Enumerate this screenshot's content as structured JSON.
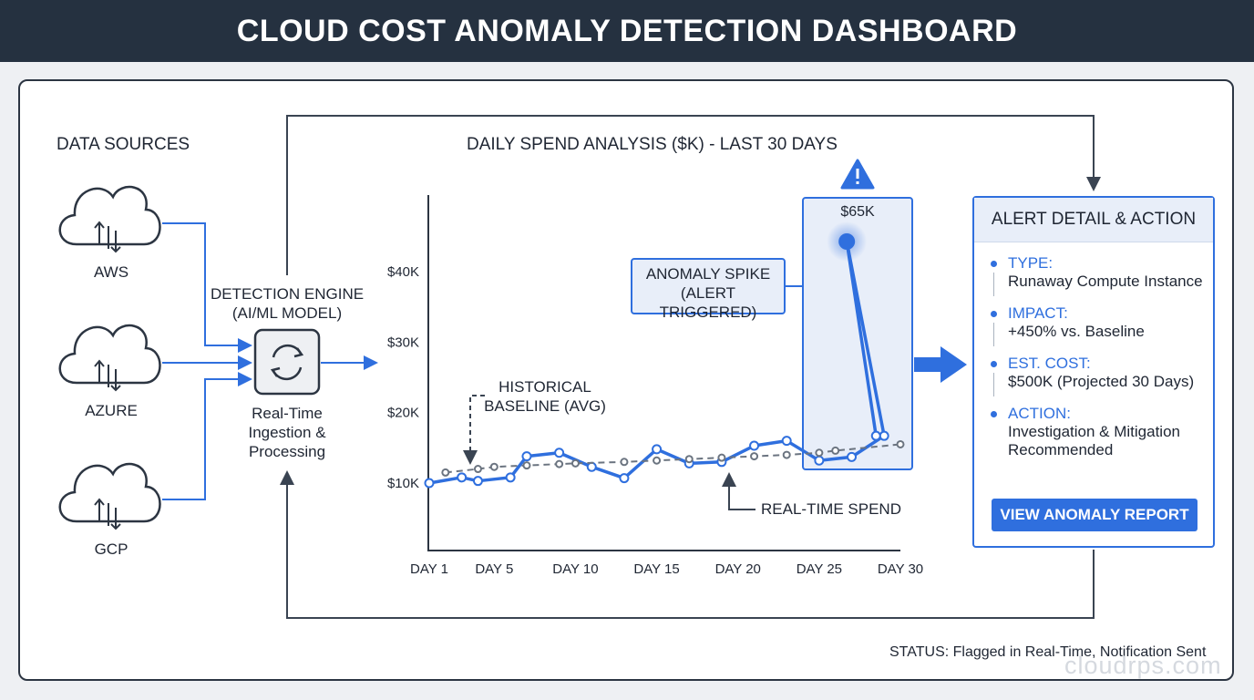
{
  "header": {
    "title": "CLOUD COST ANOMALY DETECTION DASHBOARD"
  },
  "sources": {
    "heading": "DATA SOURCES",
    "items": [
      {
        "label": "AWS",
        "icon": "cloud-sync-icon"
      },
      {
        "label": "AZURE",
        "icon": "cloud-sync-icon"
      },
      {
        "label": "GCP",
        "icon": "cloud-sync-icon"
      }
    ]
  },
  "engine": {
    "title_line1": "DETECTION ENGINE",
    "title_line2": "(AI/ML MODEL)",
    "icon": "refresh-icon",
    "desc_line1": "Real-Time",
    "desc_line2": "Ingestion &",
    "desc_line3": "Processing"
  },
  "callouts": {
    "anomaly_line1": "ANOMALY SPIKE",
    "anomaly_line2": "(ALERT TRIGGERED)",
    "baseline_line1": "HISTORICAL",
    "baseline_line2": "BASELINE (AVG)",
    "realtime": "REAL-TIME SPEND",
    "peak_value": "$65K",
    "warning_icon": "warning-icon"
  },
  "chart_data": {
    "type": "line",
    "title": "DAILY SPEND ANALYSIS ($K) - LAST 30 DAYS",
    "x": [
      1,
      2,
      3,
      4,
      5,
      6,
      7,
      8,
      9,
      10,
      11,
      12,
      13,
      14,
      15,
      16,
      17,
      18,
      19,
      20,
      21,
      22,
      23,
      24,
      25,
      26,
      27,
      28,
      29,
      30
    ],
    "x_tick_labels": [
      "DAY 1",
      "DAY 5",
      "DAY 10",
      "DAY 15",
      "DAY 20",
      "DAY 25",
      "DAY 30"
    ],
    "x_tick_values": [
      1,
      5,
      10,
      15,
      20,
      25,
      30
    ],
    "y_tick_labels": [
      "$10K",
      "$20K",
      "$30K",
      "$40K"
    ],
    "y_tick_values": [
      10,
      20,
      30,
      40
    ],
    "ylim": [
      0,
      65
    ],
    "series": [
      {
        "name": "REAL-TIME SPEND",
        "color": "#2f6fde",
        "style": "solid",
        "values": [
          10,
          null,
          10.8,
          10.3,
          null,
          10.8,
          13.8,
          null,
          14.3,
          null,
          12.3,
          null,
          10.7,
          null,
          14.8,
          null,
          12.8,
          null,
          13,
          null,
          15.3,
          null,
          16,
          null,
          13.2,
          null,
          13.7,
          null,
          16.7,
          null
        ]
      },
      {
        "name": "HISTORICAL BASELINE (AVG)",
        "color": "#6b7480",
        "style": "dashed",
        "values": [
          null,
          11.5,
          null,
          12,
          12.3,
          null,
          12.5,
          null,
          12.7,
          12.8,
          null,
          null,
          13,
          null,
          13.2,
          null,
          13.4,
          null,
          13.6,
          null,
          13.8,
          null,
          14,
          null,
          14.3,
          14.6,
          null,
          null,
          null,
          15.5
        ]
      }
    ],
    "spike": {
      "x": [
        25,
        26.7,
        28.5
      ],
      "values": [
        16.7,
        65,
        16.7
      ]
    },
    "grid": false
  },
  "alert": {
    "title": "ALERT DETAIL & ACTION",
    "rows": [
      {
        "key": "TYPE:",
        "value": "Runaway Compute Instance"
      },
      {
        "key": "IMPACT:",
        "value": "+450% vs. Baseline"
      },
      {
        "key": "EST. COST:",
        "value": "$500K (Projected 30 Days)"
      },
      {
        "key": "ACTION:",
        "value_line1": "Investigation & Mitigation",
        "value_line2": "Recommended"
      }
    ],
    "button": "VIEW ANOMALY REPORT"
  },
  "status": "STATUS: Flagged in Real-Time, Notification Sent",
  "watermark": "cloudrps.com",
  "colors": {
    "accent": "#2f6fde",
    "header_bg": "#253140",
    "dark_line": "#3a4452"
  }
}
